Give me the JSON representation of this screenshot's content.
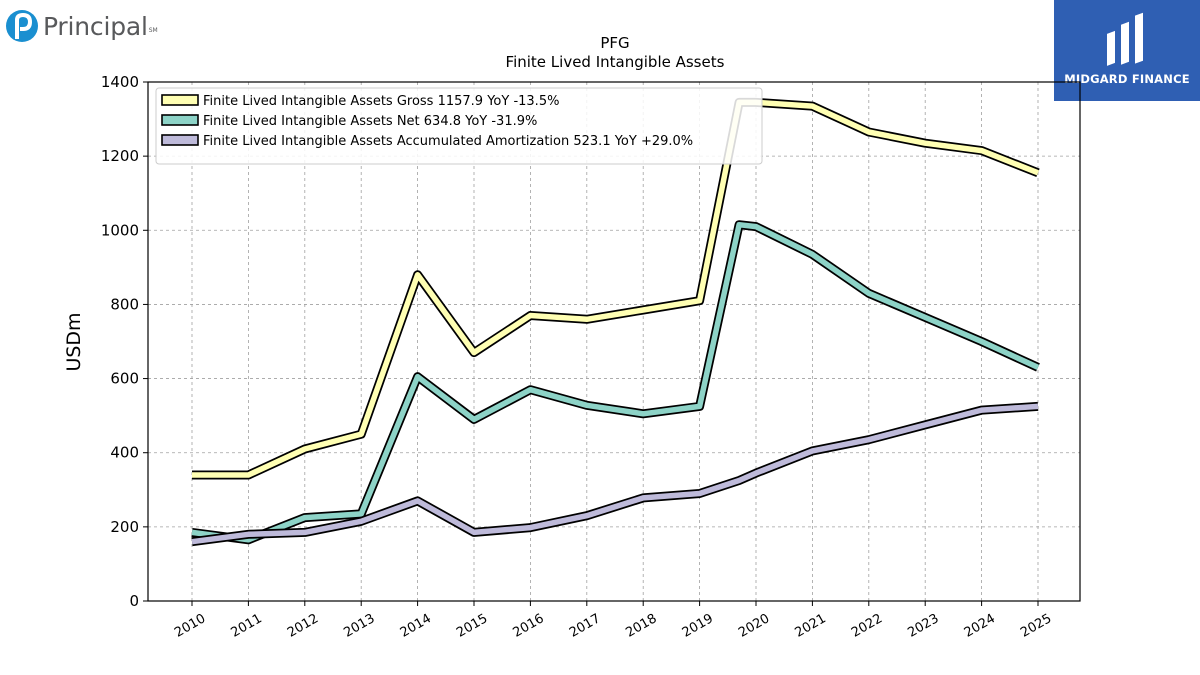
{
  "branding": {
    "left_logo_text": "Principal",
    "left_logo_mark": "SM",
    "right_logo_text": "MIDGARD FINANCE",
    "right_logo_bg": "#2f5fb3"
  },
  "chart_data": {
    "type": "line",
    "title": "PFG",
    "subtitle": "Finite Lived Intangible Assets",
    "ylabel": "USDm",
    "xlabel": "",
    "ylim": [
      0,
      1400
    ],
    "yticks": [
      0,
      200,
      400,
      600,
      800,
      1000,
      1200,
      1400
    ],
    "xticks": [
      "2010",
      "2011",
      "2012",
      "2013",
      "2014",
      "2015",
      "2016",
      "2017",
      "2018",
      "2019",
      "2020",
      "2021",
      "2022",
      "2023",
      "2024",
      "2025"
    ],
    "grid": true,
    "legend_position": "top-left",
    "x": [
      "2010",
      "2011",
      "2012",
      "2013",
      "2014",
      "2015",
      "2016",
      "2017",
      "2018",
      "2019",
      "2019.7",
      "2020",
      "2021",
      "2022",
      "2023",
      "2024",
      "2025"
    ],
    "series": [
      {
        "name": "Finite Lived Intangible Assets Gross",
        "legend": "Finite Lived Intangible Assets Gross  1157.9 YoY -13.5%",
        "color": "#ffffb3",
        "values": [
          340,
          340,
          410,
          450,
          880,
          670,
          770,
          760,
          785,
          810,
          1345,
          1345,
          1335,
          1265,
          1235,
          1215,
          1155
        ]
      },
      {
        "name": "Finite Lived Intangible Assets Net",
        "legend": "Finite Lived Intangible Assets Net  634.8 YoY -31.9%",
        "color": "#8dd3c7",
        "values": [
          185,
          165,
          225,
          235,
          605,
          490,
          570,
          528,
          505,
          525,
          1015,
          1010,
          935,
          830,
          765,
          700,
          630
        ]
      },
      {
        "name": "Finite Lived Intangible Assets Accumulated Amortization",
        "legend": "Finite Lived Intangible Assets Accumulated Amortization  523.1 YoY +29.0%",
        "color": "#bebada",
        "values": [
          160,
          180,
          185,
          215,
          270,
          185,
          198,
          230,
          278,
          290,
          325,
          345,
          405,
          435,
          475,
          515,
          525
        ]
      }
    ]
  }
}
